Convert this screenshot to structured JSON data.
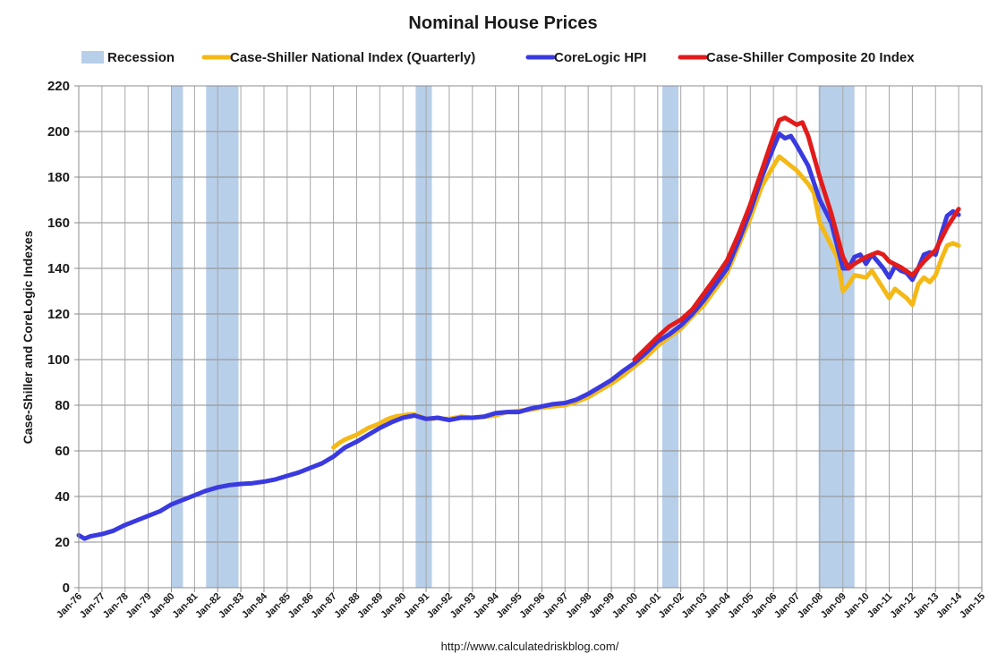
{
  "chart_data": {
    "type": "line",
    "title": "Nominal House Prices",
    "ylabel": "Case-Shiller and CoreLogic Indexes",
    "source": "http://www.calculatedriskblog.com/",
    "ylim": [
      0,
      220
    ],
    "yticks": [
      0,
      20,
      40,
      60,
      80,
      100,
      120,
      140,
      160,
      180,
      200,
      220
    ],
    "xlim": [
      1976,
      2015
    ],
    "xticks": [
      {
        "x": 1976,
        "label": "Jan-76"
      },
      {
        "x": 1977,
        "label": "Jan-77"
      },
      {
        "x": 1978,
        "label": "Jan-78"
      },
      {
        "x": 1979,
        "label": "Jan-79"
      },
      {
        "x": 1980,
        "label": "Jan-80"
      },
      {
        "x": 1981,
        "label": "Jan-81"
      },
      {
        "x": 1982,
        "label": "Jan-82"
      },
      {
        "x": 1983,
        "label": "Jan-83"
      },
      {
        "x": 1984,
        "label": "Jan-84"
      },
      {
        "x": 1985,
        "label": "Jan-85"
      },
      {
        "x": 1986,
        "label": "Jan-86"
      },
      {
        "x": 1987,
        "label": "Jan-87"
      },
      {
        "x": 1988,
        "label": "Jan-88"
      },
      {
        "x": 1989,
        "label": "Jan-89"
      },
      {
        "x": 1990,
        "label": "Jan-90"
      },
      {
        "x": 1991,
        "label": "Jan-91"
      },
      {
        "x": 1992,
        "label": "Jan-92"
      },
      {
        "x": 1993,
        "label": "Jan-93"
      },
      {
        "x": 1994,
        "label": "Jan-94"
      },
      {
        "x": 1995,
        "label": "Jan-95"
      },
      {
        "x": 1996,
        "label": "Jan-96"
      },
      {
        "x": 1997,
        "label": "Jan-97"
      },
      {
        "x": 1998,
        "label": "Jan-98"
      },
      {
        "x": 1999,
        "label": "Jan-99"
      },
      {
        "x": 2000,
        "label": "Jan-00"
      },
      {
        "x": 2001,
        "label": "Jan-01"
      },
      {
        "x": 2002,
        "label": "Jan-02"
      },
      {
        "x": 2003,
        "label": "Jan-03"
      },
      {
        "x": 2004,
        "label": "Jan-04"
      },
      {
        "x": 2005,
        "label": "Jan-05"
      },
      {
        "x": 2006,
        "label": "Jan-06"
      },
      {
        "x": 2007,
        "label": "Jan-07"
      },
      {
        "x": 2008,
        "label": "Jan-08"
      },
      {
        "x": 2009,
        "label": "Jan-09"
      },
      {
        "x": 2010,
        "label": "Jan-10"
      },
      {
        "x": 2011,
        "label": "Jan-11"
      },
      {
        "x": 2012,
        "label": "Jan-12"
      },
      {
        "x": 2013,
        "label": "Jan-13"
      },
      {
        "x": 2014,
        "label": "Jan-14"
      },
      {
        "x": 2015,
        "label": "Jan-15"
      }
    ],
    "grid": true,
    "legend_position": "top",
    "recessions": {
      "name": "Recession",
      "color": "#b8cfe9",
      "periods": [
        [
          1980.0,
          1980.5
        ],
        [
          1981.5,
          1982.9
        ],
        [
          1990.55,
          1991.25
        ],
        [
          2001.2,
          2001.9
        ],
        [
          2007.95,
          2009.5
        ]
      ]
    },
    "series": [
      {
        "name": "Case-Shiller National Index (Quarterly)",
        "color": "#f4b916",
        "points": [
          [
            1987.0,
            61.5
          ],
          [
            1987.25,
            63.5
          ],
          [
            1987.5,
            65.0
          ],
          [
            1987.75,
            66.0
          ],
          [
            1988.0,
            67.0
          ],
          [
            1988.25,
            68.5
          ],
          [
            1988.5,
            70.0
          ],
          [
            1988.75,
            71.0
          ],
          [
            1989.0,
            72.0
          ],
          [
            1989.25,
            73.5
          ],
          [
            1989.5,
            74.5
          ],
          [
            1989.75,
            75.2
          ],
          [
            1990.0,
            75.5
          ],
          [
            1990.25,
            76.0
          ],
          [
            1990.5,
            76.0
          ],
          [
            1990.75,
            75.0
          ],
          [
            1991.0,
            74.0
          ],
          [
            1991.25,
            74.0
          ],
          [
            1991.5,
            74.5
          ],
          [
            1991.75,
            74.0
          ],
          [
            1992.0,
            74.0
          ],
          [
            1992.5,
            75.0
          ],
          [
            1993.0,
            74.5
          ],
          [
            1993.5,
            75.0
          ],
          [
            1994.0,
            75.5
          ],
          [
            1994.5,
            77.0
          ],
          [
            1995.0,
            77.5
          ],
          [
            1995.5,
            78.0
          ],
          [
            1996.0,
            79.0
          ],
          [
            1996.5,
            79.5
          ],
          [
            1997.0,
            80.0
          ],
          [
            1997.5,
            81.5
          ],
          [
            1998.0,
            83.5
          ],
          [
            1998.5,
            86.5
          ],
          [
            1999.0,
            89.5
          ],
          [
            1999.5,
            93.0
          ],
          [
            2000.0,
            97.0
          ],
          [
            2000.5,
            101.0
          ],
          [
            2001.0,
            106.0
          ],
          [
            2001.5,
            110.0
          ],
          [
            2002.0,
            113.5
          ],
          [
            2002.5,
            119.0
          ],
          [
            2003.0,
            124.0
          ],
          [
            2003.5,
            131.0
          ],
          [
            2004.0,
            138.0
          ],
          [
            2004.5,
            150.0
          ],
          [
            2005.0,
            162.0
          ],
          [
            2005.5,
            176.0
          ],
          [
            2006.0,
            185.0
          ],
          [
            2006.25,
            189.0
          ],
          [
            2006.5,
            187.0
          ],
          [
            2007.0,
            183.0
          ],
          [
            2007.5,
            177.0
          ],
          [
            2007.75,
            173.0
          ],
          [
            2008.0,
            160.0
          ],
          [
            2008.5,
            150.0
          ],
          [
            2008.75,
            145.0
          ],
          [
            2009.0,
            130.0
          ],
          [
            2009.25,
            133.0
          ],
          [
            2009.5,
            137.0
          ],
          [
            2010.0,
            136.0
          ],
          [
            2010.25,
            139.0
          ],
          [
            2010.5,
            135.0
          ],
          [
            2010.75,
            131.0
          ],
          [
            2011.0,
            127.0
          ],
          [
            2011.25,
            131.0
          ],
          [
            2011.5,
            129.0
          ],
          [
            2011.75,
            127.0
          ],
          [
            2012.0,
            124.0
          ],
          [
            2012.25,
            133.0
          ],
          [
            2012.5,
            136.0
          ],
          [
            2012.75,
            134.0
          ],
          [
            2013.0,
            137.0
          ],
          [
            2013.25,
            144.0
          ],
          [
            2013.5,
            150.0
          ],
          [
            2013.75,
            151.0
          ],
          [
            2014.0,
            150.0
          ]
        ]
      },
      {
        "name": "CoreLogic HPI",
        "color": "#3a3ae0",
        "points": [
          [
            1976.0,
            23.0
          ],
          [
            1976.25,
            21.5
          ],
          [
            1976.5,
            22.5
          ],
          [
            1977.0,
            23.5
          ],
          [
            1977.5,
            25.0
          ],
          [
            1978.0,
            27.5
          ],
          [
            1978.5,
            29.5
          ],
          [
            1979.0,
            31.5
          ],
          [
            1979.5,
            33.5
          ],
          [
            1980.0,
            36.5
          ],
          [
            1980.5,
            38.5
          ],
          [
            1981.0,
            40.5
          ],
          [
            1981.5,
            42.5
          ],
          [
            1982.0,
            44.0
          ],
          [
            1982.5,
            45.0
          ],
          [
            1983.0,
            45.5
          ],
          [
            1983.5,
            45.8
          ],
          [
            1984.0,
            46.5
          ],
          [
            1984.5,
            47.5
          ],
          [
            1985.0,
            49.0
          ],
          [
            1985.5,
            50.5
          ],
          [
            1986.0,
            52.5
          ],
          [
            1986.5,
            54.5
          ],
          [
            1987.0,
            57.5
          ],
          [
            1987.5,
            61.5
          ],
          [
            1988.0,
            64.0
          ],
          [
            1988.5,
            67.0
          ],
          [
            1989.0,
            70.0
          ],
          [
            1989.5,
            72.5
          ],
          [
            1990.0,
            74.5
          ],
          [
            1990.5,
            75.5
          ],
          [
            1991.0,
            74.0
          ],
          [
            1991.5,
            74.5
          ],
          [
            1992.0,
            73.5
          ],
          [
            1992.5,
            74.5
          ],
          [
            1993.0,
            74.5
          ],
          [
            1993.5,
            75.0
          ],
          [
            1994.0,
            76.5
          ],
          [
            1994.5,
            77.0
          ],
          [
            1995.0,
            77.0
          ],
          [
            1995.5,
            78.5
          ],
          [
            1996.0,
            79.5
          ],
          [
            1996.5,
            80.5
          ],
          [
            1997.0,
            81.0
          ],
          [
            1997.5,
            82.5
          ],
          [
            1998.0,
            85.0
          ],
          [
            1998.5,
            88.0
          ],
          [
            1999.0,
            91.0
          ],
          [
            1999.5,
            95.0
          ],
          [
            2000.0,
            98.5
          ],
          [
            2000.5,
            103.0
          ],
          [
            2001.0,
            108.0
          ],
          [
            2001.5,
            111.0
          ],
          [
            2002.0,
            115.0
          ],
          [
            2002.5,
            120.0
          ],
          [
            2003.0,
            126.0
          ],
          [
            2003.5,
            133.0
          ],
          [
            2004.0,
            140.0
          ],
          [
            2004.5,
            152.0
          ],
          [
            2005.0,
            165.0
          ],
          [
            2005.5,
            180.0
          ],
          [
            2006.0,
            193.0
          ],
          [
            2006.25,
            199.0
          ],
          [
            2006.5,
            197.0
          ],
          [
            2006.75,
            198.0
          ],
          [
            2007.0,
            194.0
          ],
          [
            2007.5,
            185.0
          ],
          [
            2008.0,
            170.0
          ],
          [
            2008.5,
            160.0
          ],
          [
            2008.75,
            150.0
          ],
          [
            2009.0,
            140.0
          ],
          [
            2009.25,
            140.0
          ],
          [
            2009.5,
            145.0
          ],
          [
            2009.75,
            146.0
          ],
          [
            2010.0,
            142.0
          ],
          [
            2010.25,
            146.0
          ],
          [
            2010.5,
            143.0
          ],
          [
            2010.75,
            140.0
          ],
          [
            2011.0,
            136.0
          ],
          [
            2011.25,
            141.0
          ],
          [
            2011.5,
            139.0
          ],
          [
            2011.75,
            138.0
          ],
          [
            2012.0,
            135.0
          ],
          [
            2012.25,
            140.0
          ],
          [
            2012.5,
            146.0
          ],
          [
            2012.75,
            147.0
          ],
          [
            2013.0,
            146.0
          ],
          [
            2013.25,
            155.0
          ],
          [
            2013.5,
            163.0
          ],
          [
            2013.75,
            165.0
          ],
          [
            2014.0,
            163.5
          ]
        ]
      },
      {
        "name": "Case-Shiller Composite 20 Index",
        "color": "#e21b1b",
        "points": [
          [
            2000.0,
            100.0
          ],
          [
            2000.5,
            105.0
          ],
          [
            2001.0,
            110.0
          ],
          [
            2001.5,
            114.5
          ],
          [
            2002.0,
            117.5
          ],
          [
            2002.5,
            122.0
          ],
          [
            2003.0,
            129.0
          ],
          [
            2003.5,
            136.0
          ],
          [
            2004.0,
            143.5
          ],
          [
            2004.5,
            155.0
          ],
          [
            2005.0,
            168.0
          ],
          [
            2005.5,
            183.0
          ],
          [
            2006.0,
            198.0
          ],
          [
            2006.25,
            205.0
          ],
          [
            2006.5,
            206.0
          ],
          [
            2006.75,
            204.5
          ],
          [
            2007.0,
            203.0
          ],
          [
            2007.25,
            204.0
          ],
          [
            2007.5,
            198.0
          ],
          [
            2008.0,
            180.0
          ],
          [
            2008.5,
            164.0
          ],
          [
            2009.0,
            145.0
          ],
          [
            2009.25,
            140.0
          ],
          [
            2009.5,
            142.0
          ],
          [
            2010.0,
            145.0
          ],
          [
            2010.5,
            147.0
          ],
          [
            2010.75,
            146.0
          ],
          [
            2011.0,
            143.0
          ],
          [
            2011.5,
            140.5
          ],
          [
            2012.0,
            137.0
          ],
          [
            2012.5,
            143.0
          ],
          [
            2013.0,
            148.0
          ],
          [
            2013.5,
            158.0
          ],
          [
            2014.0,
            166.0
          ]
        ]
      }
    ]
  }
}
